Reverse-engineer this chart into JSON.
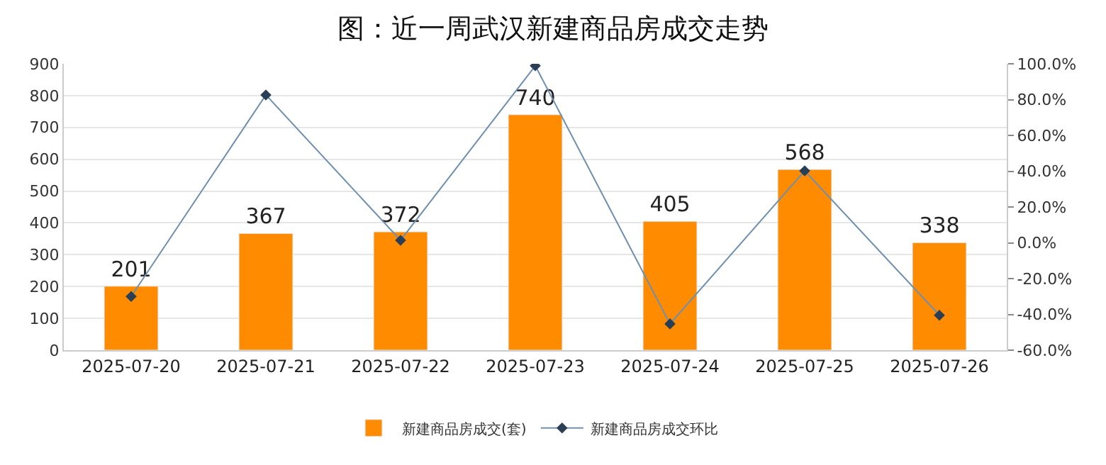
{
  "chart_data": {
    "type": "bar",
    "title": "图：近一周武汉新建商品房成交走势",
    "categories": [
      "2025-07-20",
      "2025-07-21",
      "2025-07-22",
      "2025-07-23",
      "2025-07-24",
      "2025-07-25",
      "2025-07-26"
    ],
    "series": [
      {
        "name": "新建商品房成交(套)",
        "color": "#ff8c00",
        "values": [
          201,
          367,
          372,
          740,
          405,
          568,
          338
        ],
        "data_labels": true
      },
      {
        "name": "新建商品房成交环比",
        "type": "line",
        "axis": "y2",
        "color": "#6f8fb0",
        "marker": "diamond",
        "values": [
          -30,
          82.6,
          1.4,
          98.9,
          -45.3,
          40.2,
          -40.5
        ]
      }
    ],
    "ylim": [
      0,
      900
    ],
    "yticks": [
      0,
      100,
      200,
      300,
      400,
      500,
      600,
      700,
      800,
      900
    ],
    "y2lim": [
      -60,
      100
    ],
    "y2ticks": [
      {
        "value": -60,
        "label": "-60.0%"
      },
      {
        "value": -40,
        "label": "-40.0%"
      },
      {
        "value": -20,
        "label": "-20.0%"
      },
      {
        "value": 0,
        "label": "0.0%"
      },
      {
        "value": 20,
        "label": "20.0%"
      },
      {
        "value": 40,
        "label": "40.0%"
      },
      {
        "value": 60,
        "label": "60.0%"
      },
      {
        "value": 80,
        "label": "80.0%"
      },
      {
        "value": 100,
        "label": "100.0%"
      }
    ],
    "grid": "y",
    "legend": "bottom"
  }
}
